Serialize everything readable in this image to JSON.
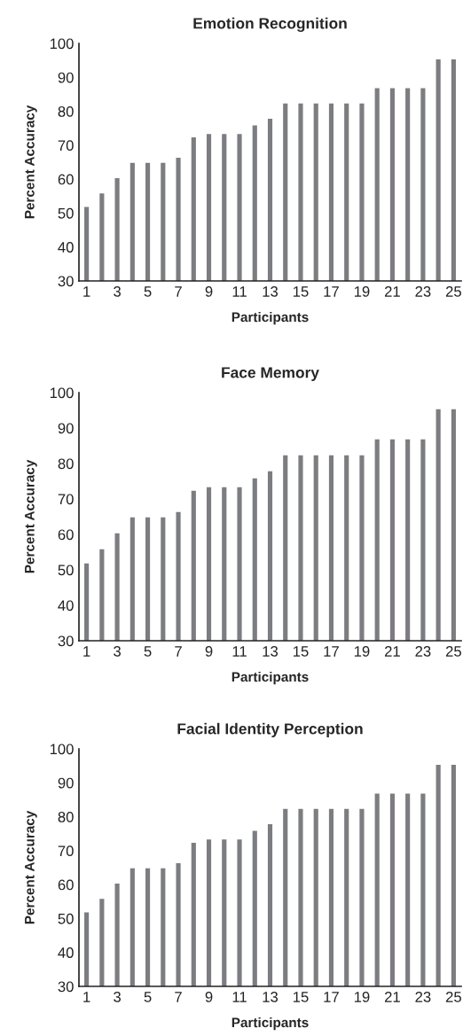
{
  "chart_data": [
    {
      "type": "bar",
      "title": "Emotion Recognition",
      "xlabel": "Participants",
      "ylabel": "Percent Accuracy",
      "categories": [
        "1",
        null,
        "3",
        null,
        "5",
        null,
        "7",
        null,
        "9",
        null,
        "11",
        null,
        "13",
        null,
        "15",
        null,
        "17",
        null,
        "19",
        null,
        "21",
        null,
        "23",
        null,
        "25"
      ],
      "values": [
        52,
        56,
        60.5,
        65,
        65,
        65,
        66.5,
        72.5,
        73.5,
        73.5,
        73.5,
        76,
        78,
        82.5,
        82.5,
        82.5,
        82.5,
        82.5,
        82.5,
        87,
        87,
        87,
        87,
        95.5,
        95.5
      ],
      "color": "#7c7d81",
      "ylim": [
        30,
        100
      ],
      "yticks": [
        30,
        40,
        50,
        60,
        70,
        80,
        90,
        100
      ],
      "grid": false,
      "legend": false
    },
    {
      "type": "bar",
      "title": "Face Memory",
      "xlabel": "Participants",
      "ylabel": "Percent Accuracy",
      "categories": [
        "1",
        null,
        "3",
        null,
        "5",
        null,
        "7",
        null,
        "9",
        null,
        "11",
        null,
        "13",
        null,
        "15",
        null,
        "17",
        null,
        "19",
        null,
        "21",
        null,
        "23",
        null,
        "25"
      ],
      "values": [
        52,
        56,
        60.5,
        65,
        65,
        65,
        66.5,
        72.5,
        73.5,
        73.5,
        73.5,
        76,
        78,
        82.5,
        82.5,
        82.5,
        82.5,
        82.5,
        82.5,
        87,
        87,
        87,
        87,
        95.5,
        95.5
      ],
      "color": "#7c7d81",
      "ylim": [
        30,
        100
      ],
      "yticks": [
        30,
        40,
        50,
        60,
        70,
        80,
        90,
        100
      ],
      "grid": false,
      "legend": false
    },
    {
      "type": "bar",
      "title": "Facial Identity Perception",
      "xlabel": "Participants",
      "ylabel": "Percent Accuracy",
      "categories": [
        "1",
        null,
        "3",
        null,
        "5",
        null,
        "7",
        null,
        "9",
        null,
        "11",
        null,
        "13",
        null,
        "15",
        null,
        "17",
        null,
        "19",
        null,
        "21",
        null,
        "23",
        null,
        "25"
      ],
      "values": [
        52,
        56,
        60.5,
        65,
        65,
        65,
        66.5,
        72.5,
        73.5,
        73.5,
        73.5,
        76,
        78,
        82.5,
        82.5,
        82.5,
        82.5,
        82.5,
        82.5,
        87,
        87,
        87,
        87,
        95.5,
        95.5
      ],
      "color": "#7c7d81",
      "ylim": [
        30,
        100
      ],
      "yticks": [
        30,
        40,
        50,
        60,
        70,
        80,
        90,
        100
      ],
      "grid": false,
      "legend": false
    }
  ]
}
